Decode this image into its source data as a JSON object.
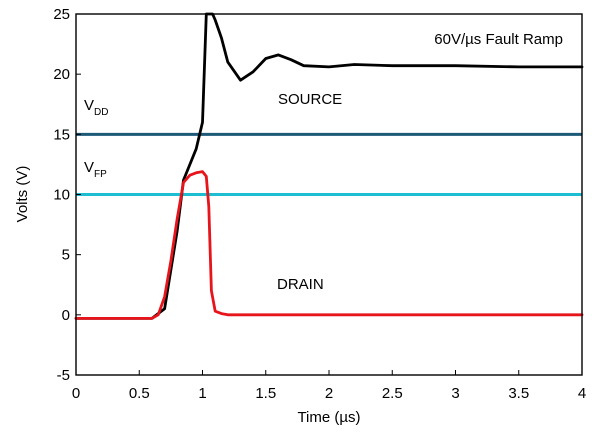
{
  "chart_data": {
    "type": "line",
    "title": "60V/µs Fault Ramp",
    "xlabel": "Time (µs)",
    "ylabel": "Volts (V)",
    "xlim": [
      0,
      4
    ],
    "ylim": [
      -5,
      25
    ],
    "xticks": [
      "0",
      "0.5",
      "1",
      "1.5",
      "2",
      "2.5",
      "3",
      "3.5",
      "4"
    ],
    "yticks": [
      "-5",
      "0",
      "5",
      "10",
      "15",
      "20",
      "25"
    ],
    "grid": false,
    "colors": {
      "source": "#000000",
      "drain": "#e8141c",
      "vdd": "#1c5a78",
      "vfp": "#1ebed2"
    },
    "reference_lines": [
      {
        "name": "V",
        "subscript": "DD",
        "y": 15
      },
      {
        "name": "V",
        "subscript": "FP",
        "y": 10
      }
    ],
    "series": [
      {
        "name": "SOURCE",
        "x": [
          0,
          0.6,
          0.7,
          0.8,
          0.85,
          0.9,
          0.95,
          1.0,
          1.03,
          1.05,
          1.08,
          1.1,
          1.15,
          1.2,
          1.3,
          1.4,
          1.5,
          1.6,
          1.7,
          1.8,
          2.0,
          2.2,
          2.5,
          3.0,
          3.5,
          4.0
        ],
        "y": [
          -0.3,
          -0.3,
          0.5,
          7.0,
          11.2,
          12.5,
          13.8,
          16.0,
          26.0,
          26.0,
          25.5,
          24.5,
          23.0,
          21.0,
          19.5,
          20.2,
          21.3,
          21.6,
          21.2,
          20.7,
          20.6,
          20.8,
          20.7,
          20.7,
          20.6,
          20.6
        ]
      },
      {
        "name": "DRAIN",
        "x": [
          0,
          0.6,
          0.65,
          0.7,
          0.75,
          0.8,
          0.85,
          0.9,
          0.95,
          1.0,
          1.03,
          1.05,
          1.07,
          1.1,
          1.15,
          1.2,
          1.5,
          2.0,
          3.0,
          4.0
        ],
        "y": [
          -0.3,
          -0.3,
          0.0,
          1.5,
          4.5,
          8.0,
          11.0,
          11.6,
          11.8,
          11.9,
          11.5,
          9.0,
          2.0,
          0.3,
          0.1,
          0.0,
          0.0,
          0.0,
          0.0,
          0.0
        ]
      }
    ]
  }
}
